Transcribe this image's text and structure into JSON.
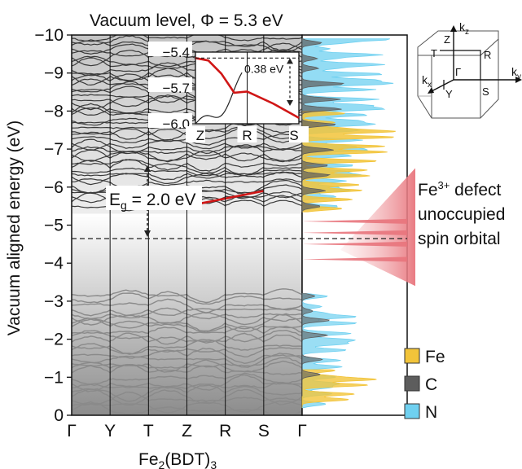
{
  "chart_data": {
    "type": "line",
    "title": "Vacuum level,  Φ = 5.3 eV",
    "xlabel": "Fe",
    "xlabel_sub1": "2",
    "xlabel_mid": "(BDT)",
    "xlabel_sub2": "3",
    "ylabel": "Vacuum aligned energy (eV)",
    "ylim": [
      -10,
      0
    ],
    "yticks": [
      0,
      -1,
      -2,
      -3,
      -4,
      -5,
      -6,
      -7,
      -8,
      -9,
      -10
    ],
    "ytick_labels": [
      "0",
      "−1",
      "−2",
      "−3",
      "−4",
      "−5",
      "−6",
      "−7",
      "−8",
      "−9",
      "−10"
    ],
    "kpath": [
      "Γ",
      "Y",
      "T",
      "Z",
      "R",
      "S",
      "Γ"
    ],
    "gap": {
      "label_prefix": "E",
      "label_sub": "g",
      "label_suffix": " = 2.0 eV",
      "value": 2.0,
      "cbm": -3.3,
      "vbm": -5.3
    },
    "vacuum_level_line": -5.3,
    "valence_band_max_path": {
      "x": [
        "Z",
        "R",
        "S"
      ],
      "y": [
        -5.5,
        -5.7,
        -5.9
      ]
    },
    "inset": {
      "yticks": [
        -5.4,
        -5.7,
        -6.0
      ],
      "ytick_labels": [
        "−5.4",
        "−5.7",
        "−6.0"
      ],
      "ylim": [
        -6.0,
        -5.4
      ],
      "kpath": [
        "Z",
        "R",
        "S"
      ],
      "annotation": "0.38 eV",
      "red_band": {
        "x": [
          0,
          0.25,
          0.5,
          0.75,
          1.0,
          1.5,
          2.0
        ],
        "y": [
          -5.45,
          -5.47,
          -5.58,
          -5.74,
          -5.73,
          -5.83,
          -5.95
        ]
      }
    },
    "defect": {
      "label_line1_prefix": "Fe",
      "label_line1_sup": "3+",
      "label_line1_suffix": " defect",
      "label_line2": "unoccupied",
      "label_line3": "spin orbital",
      "energies": [
        -4.1,
        -4.5,
        -4.8,
        -5.1
      ]
    },
    "legend": [
      "Fe",
      "C",
      "N"
    ],
    "legend_colors": {
      "Fe": "#f2c43a",
      "C": "#5d5d5d",
      "N": "#6fd0f0"
    },
    "colors": {
      "band": "#3a3a3a",
      "highlight": "#d01616",
      "defect": "#e8747c"
    },
    "bz": {
      "kz": "k",
      "kz_sub": "z",
      "kx": "k",
      "kx_sub": "x",
      "ky": "k",
      "ky_sub": "y",
      "points": [
        "Z",
        "T",
        "R",
        "Γ",
        "Y",
        "S"
      ]
    }
  }
}
